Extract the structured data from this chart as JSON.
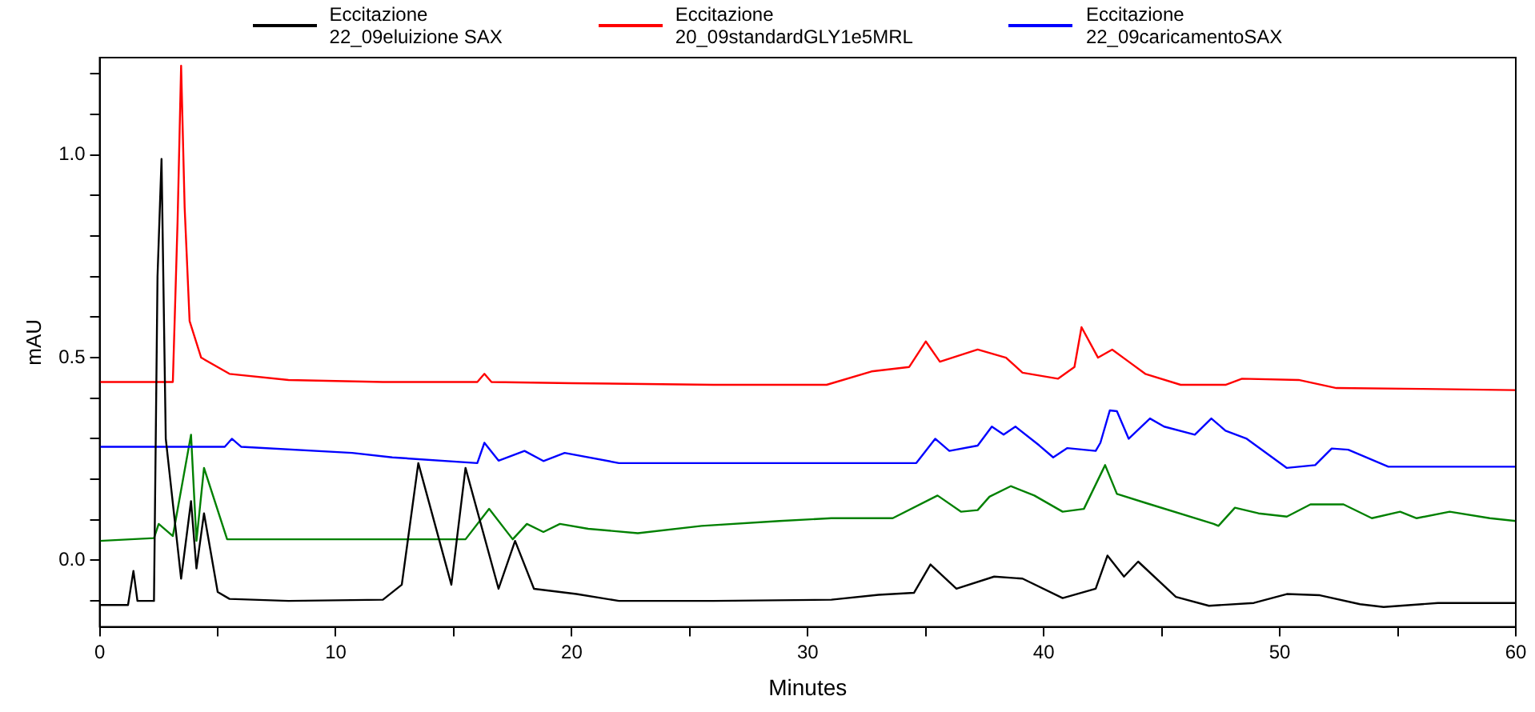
{
  "chart_data": {
    "type": "line",
    "xlabel": "Minutes",
    "ylabel": "mAU",
    "legend": "top",
    "grid": false,
    "marker": "none",
    "line_style": "solid",
    "xlim": [
      0,
      60
    ],
    "ylim": [
      -0.164,
      1.24
    ],
    "xticks": [
      0,
      {
        "value": 5,
        "label": null
      },
      10,
      {
        "value": 15,
        "label": null
      },
      20,
      {
        "value": 25,
        "label": null
      },
      30,
      {
        "value": 35,
        "label": null
      },
      40,
      {
        "value": 45,
        "label": null
      },
      50,
      {
        "value": 55,
        "label": null
      },
      60
    ],
    "yticks": [
      {
        "value": -0.1,
        "label": null
      },
      {
        "value": 0,
        "label": "0.0"
      },
      {
        "value": 0.1,
        "label": null
      },
      {
        "value": 0.2,
        "label": null
      },
      {
        "value": 0.3,
        "label": null
      },
      {
        "value": 0.4,
        "label": null
      },
      {
        "value": 0.5,
        "label": "0.5"
      },
      {
        "value": 0.6,
        "label": null
      },
      {
        "value": 0.7,
        "label": null
      },
      {
        "value": 0.8,
        "label": null
      },
      {
        "value": 0.9,
        "label": null
      },
      {
        "value": 1.0,
        "label": "1.0"
      },
      {
        "value": 1.1,
        "label": null
      },
      {
        "value": 1.2,
        "label": null
      }
    ],
    "series": [
      {
        "name": "Eccitazione\n22_09eluizione SAX",
        "color": "#000000",
        "x": [
          0,
          1.2,
          1.43,
          1.6,
          2.3,
          2.45,
          2.62,
          2.8,
          3.45,
          3.87,
          4.1,
          4.42,
          5.0,
          5.5,
          8,
          12,
          12.8,
          13.5,
          14.9,
          15.5,
          16.9,
          17.6,
          18.4,
          20.2,
          22,
          26,
          31,
          33,
          34.5,
          35.2,
          36.3,
          37.9,
          39.1,
          40.8,
          42.2,
          42.7,
          43.4,
          44.0,
          45.6,
          47.0,
          48.9,
          50.3,
          51.7,
          53.4,
          54.4,
          56.7,
          60
        ],
        "values": [
          -0.11,
          -0.11,
          -0.026,
          -0.1,
          -0.1,
          0.7,
          0.99,
          0.3,
          -0.045,
          0.146,
          -0.02,
          0.116,
          -0.078,
          -0.095,
          -0.1,
          -0.097,
          -0.06,
          0.24,
          -0.06,
          0.228,
          -0.07,
          0.048,
          -0.07,
          -0.083,
          -0.1,
          -0.1,
          -0.097,
          -0.085,
          -0.08,
          -0.01,
          -0.07,
          -0.04,
          -0.045,
          -0.093,
          -0.07,
          0.012,
          -0.04,
          -0.003,
          -0.09,
          -0.112,
          -0.105,
          -0.083,
          -0.086,
          -0.108,
          -0.115,
          -0.105,
          -0.105
        ]
      },
      {
        "name": "Eccitazione\n20_09standardGLY1e5MRL",
        "color": "#ff0000",
        "x": [
          0,
          2.9,
          3.1,
          3.3,
          3.45,
          3.6,
          3.81,
          4.3,
          5.5,
          8,
          12,
          16.0,
          16.3,
          16.6,
          20,
          26,
          30.8,
          32.7,
          34.3,
          35.0,
          35.6,
          37.2,
          38.4,
          39.1,
          40.6,
          41.3,
          41.6,
          42.3,
          42.9,
          43.6,
          44.3,
          45.8,
          47.7,
          48.4,
          50.8,
          52.4,
          56,
          59.9,
          60
        ],
        "values": [
          0.44,
          0.44,
          0.44,
          0.836,
          1.22,
          0.87,
          0.59,
          0.5,
          0.46,
          0.445,
          0.44,
          0.44,
          0.46,
          0.44,
          0.437,
          0.433,
          0.433,
          0.466,
          0.477,
          0.54,
          0.49,
          0.52,
          0.5,
          0.463,
          0.448,
          0.477,
          0.575,
          0.5,
          0.52,
          0.49,
          0.46,
          0.433,
          0.433,
          0.448,
          0.445,
          0.425,
          0.423,
          0.42,
          0.42
        ]
      },
      {
        "name": "Eccitazione\n22_09caricamentoSAX",
        "color": "#0000ff",
        "x": [
          0,
          5.3,
          5.6,
          6.0,
          10.7,
          12.4,
          16.0,
          16.3,
          16.9,
          18.0,
          18.8,
          19.7,
          22,
          28,
          34.6,
          35.4,
          36.0,
          37.2,
          37.8,
          38.3,
          38.8,
          39.8,
          40.4,
          41.0,
          42.2,
          42.4,
          42.8,
          43.1,
          43.6,
          44.5,
          45.1,
          46.4,
          47.1,
          47.7,
          48.6,
          50.3,
          51.5,
          52.2,
          52.9,
          54.6,
          60
        ],
        "values": [
          0.28,
          0.28,
          0.3,
          0.28,
          0.265,
          0.254,
          0.24,
          0.29,
          0.246,
          0.27,
          0.245,
          0.265,
          0.24,
          0.24,
          0.24,
          0.3,
          0.27,
          0.283,
          0.33,
          0.31,
          0.33,
          0.284,
          0.254,
          0.277,
          0.27,
          0.29,
          0.37,
          0.368,
          0.3,
          0.35,
          0.33,
          0.31,
          0.35,
          0.32,
          0.3,
          0.228,
          0.235,
          0.276,
          0.273,
          0.231,
          0.231
        ]
      },
      {
        "color": "#008000",
        "x": [
          0,
          2.3,
          2.5,
          3.1,
          3.87,
          4.1,
          4.42,
          5.4,
          10,
          15.5,
          16.5,
          17.5,
          18.1,
          18.8,
          19.5,
          20.7,
          22.8,
          25.5,
          28.8,
          31.0,
          33.6,
          35.5,
          36.5,
          37.2,
          37.7,
          38.6,
          39.6,
          40.8,
          41.7,
          42.6,
          43.1,
          44.3,
          47.2,
          47.4,
          48.1,
          49.1,
          50.3,
          51.3,
          52.7,
          53.9,
          55.1,
          55.8,
          57.2,
          58.9,
          60
        ],
        "values": [
          0.048,
          0.055,
          0.09,
          0.06,
          0.31,
          0.048,
          0.228,
          0.052,
          0.052,
          0.052,
          0.127,
          0.052,
          0.09,
          0.07,
          0.09,
          0.078,
          0.067,
          0.085,
          0.097,
          0.104,
          0.104,
          0.16,
          0.12,
          0.124,
          0.157,
          0.183,
          0.16,
          0.12,
          0.127,
          0.235,
          0.164,
          0.142,
          0.09,
          0.085,
          0.13,
          0.116,
          0.108,
          0.138,
          0.138,
          0.104,
          0.12,
          0.104,
          0.12,
          0.104,
          0.097
        ]
      }
    ]
  }
}
